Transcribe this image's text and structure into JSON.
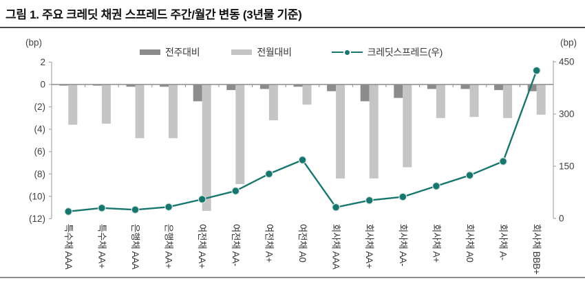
{
  "figure": {
    "title": "그림 1. 주요 크레딧 채권 스프레드 주간/월간 변동 (3년물 기준)"
  },
  "legend": {
    "items": [
      {
        "label": "전주대비",
        "type": "bar",
        "color": "#8c8c8c"
      },
      {
        "label": "전월대비",
        "type": "bar",
        "color": "#c5c5c5"
      },
      {
        "label": "크레딧스프레드(우)",
        "type": "line",
        "color": "#17766e"
      }
    ]
  },
  "axes": {
    "left": {
      "unit": "(bp)",
      "ticks": [
        {
          "label": "2",
          "value": 2
        },
        {
          "label": "0",
          "value": 0
        },
        {
          "label": "(2)",
          "value": -2
        },
        {
          "label": "(4)",
          "value": -4
        },
        {
          "label": "(6)",
          "value": -6
        },
        {
          "label": "(8)",
          "value": -8
        },
        {
          "label": "(10)",
          "value": -10
        },
        {
          "label": "(12)",
          "value": -12
        }
      ]
    },
    "right": {
      "unit": "(bp)",
      "ticks": [
        {
          "label": "450",
          "value": 450
        },
        {
          "label": "300",
          "value": 300
        },
        {
          "label": "150",
          "value": 150
        },
        {
          "label": "0",
          "value": 0
        }
      ]
    }
  },
  "chart_data": {
    "type": "bar",
    "title": "주요 크레딧 채권 스프레드 주간/월간 변동 (3년물 기준)",
    "categories": [
      "특수채 AAA",
      "특수채 AA+",
      "은행채 AAA",
      "은행채 AA+",
      "여전채 AA+",
      "여전채 AA-",
      "여전채 A+",
      "여전채 A0",
      "회사채 AAA",
      "회사채 AA+",
      "회사채 AA-",
      "회사채 A+",
      "회사채 A0",
      "회사채 A-",
      "회사채 BBB+"
    ],
    "series": [
      {
        "name": "전주대비",
        "type": "bar",
        "axis": "left",
        "color": "#8c8c8c",
        "values": [
          -0.1,
          -0.1,
          -0.2,
          -0.2,
          -1.5,
          -0.5,
          -0.4,
          -0.2,
          -0.6,
          -1.5,
          -1.2,
          -0.4,
          -0.4,
          -0.5,
          -0.6
        ]
      },
      {
        "name": "전월대비",
        "type": "bar",
        "axis": "left",
        "color": "#c5c5c5",
        "values": [
          -3.6,
          -3.5,
          -4.8,
          -4.8,
          -11.3,
          -8.9,
          -3.2,
          -1.8,
          -8.4,
          -8.4,
          -7.4,
          -3.0,
          -2.9,
          -3.0,
          -2.7
        ]
      },
      {
        "name": "크레딧스프레드(우)",
        "type": "line",
        "axis": "right",
        "color": "#17766e",
        "values": [
          20,
          30,
          25,
          33,
          55,
          79,
          128,
          168,
          32,
          52,
          62,
          93,
          124,
          164,
          425
        ]
      }
    ],
    "left_axis_label": "(bp)",
    "right_axis_label": "(bp)",
    "left_ylim": [
      -12,
      2
    ],
    "right_ylim": [
      0,
      450
    ],
    "grid": false,
    "legend_position": "top"
  }
}
